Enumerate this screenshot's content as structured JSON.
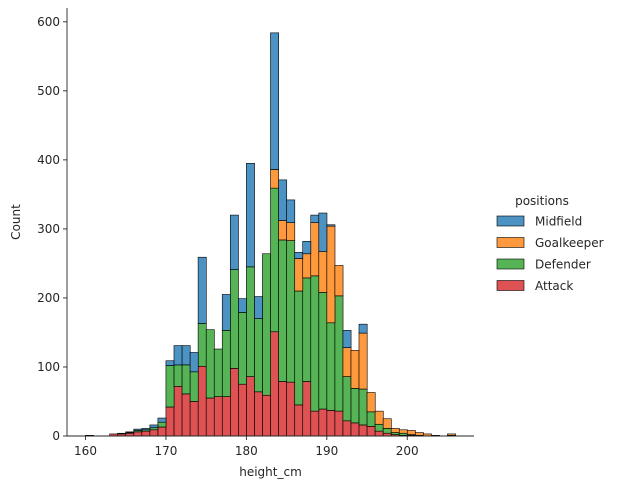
{
  "chart_data": {
    "type": "bar",
    "stacked": true,
    "title": "",
    "xlabel": "height_cm",
    "ylabel": "Count",
    "xlim": [
      157.7,
      208.3
    ],
    "ylim": [
      0,
      620
    ],
    "xticks": [
      160,
      170,
      180,
      190,
      200
    ],
    "yticks": [
      0,
      100,
      200,
      300,
      400,
      500,
      600
    ],
    "grid": false,
    "legend": {
      "title": "positions",
      "placement": "right"
    },
    "bins_left": [
      160,
      161,
      162,
      163,
      164,
      165,
      166,
      167,
      168,
      169,
      170,
      171,
      172,
      173,
      174,
      175,
      176,
      177,
      178,
      179,
      180,
      181,
      182,
      183,
      184,
      185,
      186,
      187,
      188,
      189,
      190,
      191,
      192,
      193,
      194,
      195,
      196,
      197,
      198,
      199,
      200,
      201,
      202,
      203,
      204,
      205
    ],
    "bin_width": 1.02,
    "series": [
      {
        "name": "Attack",
        "color": "#d62728",
        "values": [
          1,
          0,
          0,
          3,
          3,
          4,
          6,
          7,
          9,
          13,
          42,
          72,
          61,
          50,
          101,
          55,
          57,
          57,
          98,
          75,
          86,
          64,
          59,
          151,
          79,
          78,
          45,
          79,
          36,
          39,
          37,
          36,
          22,
          19,
          16,
          14,
          7,
          4,
          2,
          1,
          1,
          1,
          0,
          0,
          0,
          1
        ]
      },
      {
        "name": "Defender",
        "color": "#2ca02c",
        "values": [
          0,
          0,
          0,
          0,
          1,
          1,
          2,
          2,
          3,
          7,
          60,
          31,
          42,
          43,
          62,
          99,
          69,
          96,
          143,
          104,
          159,
          106,
          205,
          208,
          205,
          205,
          165,
          150,
          196,
          169,
          127,
          167,
          64,
          50,
          52,
          21,
          10,
          7,
          3,
          3,
          1,
          0,
          0,
          0,
          0,
          0
        ]
      },
      {
        "name": "Goalkeeper",
        "color": "#ff7f0e",
        "values": [
          0,
          0,
          0,
          0,
          0,
          0,
          0,
          0,
          0,
          0,
          0,
          0,
          0,
          0,
          0,
          0,
          0,
          0,
          0,
          0,
          0,
          0,
          0,
          27,
          28,
          26,
          47,
          35,
          77,
          59,
          140,
          44,
          42,
          55,
          81,
          28,
          19,
          14,
          6,
          5,
          6,
          4,
          3,
          1,
          0,
          2
        ]
      },
      {
        "name": "Midfield",
        "color": "#1f77b4",
        "values": [
          0,
          0,
          0,
          0,
          0,
          1,
          2,
          2,
          4,
          6,
          7,
          28,
          28,
          28,
          96,
          0,
          0,
          52,
          79,
          20,
          150,
          32,
          0,
          198,
          59,
          33,
          9,
          18,
          11,
          56,
          2,
          0,
          25,
          0,
          13,
          0,
          0,
          0,
          0,
          0,
          0,
          0,
          0,
          0,
          0,
          0
        ]
      }
    ]
  },
  "legend": {
    "title": "positions",
    "items": [
      {
        "label": "Midfield",
        "color": "#1f77b4"
      },
      {
        "label": "Goalkeeper",
        "color": "#ff7f0e"
      },
      {
        "label": "Defender",
        "color": "#2ca02c"
      },
      {
        "label": "Attack",
        "color": "#d62728"
      }
    ]
  }
}
